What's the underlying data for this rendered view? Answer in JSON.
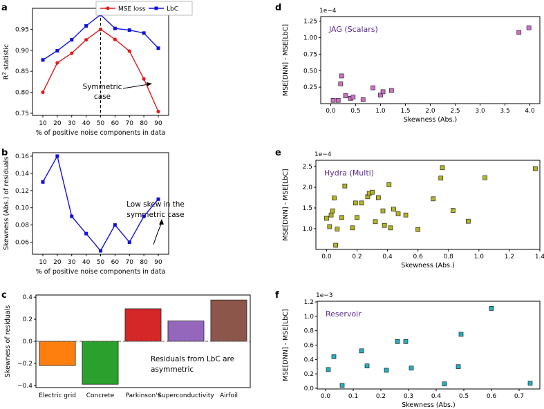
{
  "chart_data": [
    {
      "panel": "a",
      "type": "line",
      "categories": [
        "10",
        "20",
        "30",
        "40",
        "50",
        "60",
        "70",
        "80",
        "90"
      ],
      "series": [
        {
          "name": "MSE loss",
          "color": "#e41a1c",
          "marker": "circle",
          "values": [
            0.8,
            0.87,
            0.893,
            0.925,
            0.95,
            0.926,
            0.898,
            0.832,
            0.754
          ]
        },
        {
          "name": "LbC",
          "color": "#1010e0",
          "marker": "square",
          "values": [
            0.877,
            0.899,
            0.925,
            0.958,
            0.985,
            0.952,
            0.948,
            0.941,
            0.905
          ]
        }
      ],
      "xlabel": "% of positive noise components in data",
      "ylabel": "R² statistic",
      "yticks": [
        "0.75",
        "0.80",
        "0.85",
        "0.90",
        "0.95"
      ],
      "ylim": [
        0.745,
        1.0
      ],
      "vline_at": "50",
      "annotation": [
        "Symmetric",
        "case"
      ]
    },
    {
      "panel": "b",
      "type": "line",
      "categories": [
        "10",
        "20",
        "30",
        "40",
        "50",
        "60",
        "70",
        "80",
        "90"
      ],
      "series": [
        {
          "name": "Skewness",
          "color": "#1010e0",
          "marker": "square",
          "values": [
            0.13,
            0.16,
            0.09,
            0.07,
            0.05,
            0.08,
            0.06,
            0.09,
            0.11
          ]
        }
      ],
      "xlabel": "% of positive noise components in data",
      "ylabel": "Skewness (Abs.) of residuals",
      "yticks": [
        "0.06",
        "0.08",
        "0.10",
        "0.12",
        "0.14",
        "0.16"
      ],
      "ylim": [
        0.046,
        0.164
      ],
      "annotation": [
        "Low skew in the",
        "symmetric case"
      ]
    },
    {
      "panel": "c",
      "type": "bar",
      "categories": [
        "Electric grid",
        "Concrete",
        "Parkinson's",
        "Superconductivity",
        "Airfoil"
      ],
      "values": [
        -0.22,
        -0.39,
        0.295,
        0.185,
        0.375
      ],
      "colors": [
        "#ff7f0e",
        "#2ca02c",
        "#d62728",
        "#9467bd",
        "#8c564b"
      ],
      "ylabel": "Skewness of residuals",
      "yticks": [
        "0.4",
        "0.2",
        "0.0",
        "−0.2",
        "−0.4"
      ],
      "ylim": [
        -0.42,
        0.42
      ],
      "annotation": [
        "Residuals from LbC are",
        "asymmetric"
      ]
    },
    {
      "panel": "d",
      "type": "scatter",
      "title": "JAG (Scalars)",
      "color": "#d070c8",
      "exponent": "1e−4",
      "xlabel": "Skewness (Abs.)",
      "ylabel": "MSE[DNN] - MSE[LbC]",
      "xticks": [
        "0.0",
        "0.5",
        "1.0",
        "1.5",
        "2.0",
        "2.5",
        "3.0",
        "3.5",
        "4.0"
      ],
      "yticks": [
        "0.25",
        "0.50",
        "0.75",
        "1.00",
        "1.25"
      ],
      "xlim": [
        -0.2,
        4.2
      ],
      "ylim": [
        0.0,
        1.32
      ],
      "points": [
        [
          0.05,
          0.05
        ],
        [
          0.15,
          0.05
        ],
        [
          0.2,
          0.3
        ],
        [
          0.22,
          0.42
        ],
        [
          0.3,
          0.12
        ],
        [
          0.4,
          0.08
        ],
        [
          0.45,
          0.1
        ],
        [
          0.65,
          0.06
        ],
        [
          0.85,
          0.24
        ],
        [
          1.0,
          0.13
        ],
        [
          1.05,
          0.18
        ],
        [
          1.22,
          0.2
        ],
        [
          3.78,
          1.08
        ],
        [
          3.98,
          1.15
        ]
      ]
    },
    {
      "panel": "e",
      "type": "scatter",
      "title": "Hydra (Multi)",
      "color": "#b5b520",
      "exponent": "1e−4",
      "xlabel": "Skewness (Abs.)",
      "ylabel": "MSE[DNN] - MSE[LbC]",
      "xticks": [
        "0.0",
        "0.2",
        "0.4",
        "0.6",
        "0.8",
        "1.0",
        "1.2",
        "1.4"
      ],
      "yticks": [
        "1.0",
        "1.5",
        "2.0",
        "2.5"
      ],
      "xlim": [
        -0.07,
        1.4
      ],
      "ylim": [
        0.5,
        2.65
      ],
      "points": [
        [
          0.0,
          1.25
        ],
        [
          0.02,
          1.05
        ],
        [
          0.03,
          1.33
        ],
        [
          0.04,
          1.43
        ],
        [
          0.05,
          1.74
        ],
        [
          0.06,
          0.6
        ],
        [
          0.07,
          0.99
        ],
        [
          0.1,
          1.27
        ],
        [
          0.12,
          2.03
        ],
        [
          0.17,
          1.02
        ],
        [
          0.19,
          1.62
        ],
        [
          0.2,
          1.27
        ],
        [
          0.23,
          1.62
        ],
        [
          0.27,
          1.77
        ],
        [
          0.28,
          1.85
        ],
        [
          0.3,
          1.88
        ],
        [
          0.32,
          1.17
        ],
        [
          0.34,
          1.75
        ],
        [
          0.37,
          1.43
        ],
        [
          0.38,
          1.08
        ],
        [
          0.41,
          2.06
        ],
        [
          0.42,
          1.02
        ],
        [
          0.44,
          1.47
        ],
        [
          0.47,
          1.36
        ],
        [
          0.52,
          1.33
        ],
        [
          0.6,
          0.98
        ],
        [
          0.7,
          1.72
        ],
        [
          0.75,
          2.22
        ],
        [
          0.76,
          2.47
        ],
        [
          0.83,
          1.44
        ],
        [
          0.93,
          1.18
        ],
        [
          1.04,
          2.23
        ],
        [
          1.37,
          2.45
        ]
      ]
    },
    {
      "panel": "f",
      "type": "scatter",
      "title": "Reservoir",
      "color": "#24b0c0",
      "exponent": "1e−3",
      "xlabel": "Skewness (Abs.)",
      "ylabel": "MSE[DNN] - MSE[LbC]",
      "xticks": [
        "0.0",
        "0.1",
        "0.2",
        "0.3",
        "0.4",
        "0.5",
        "0.6",
        "0.7"
      ],
      "yticks": [
        "0.0",
        "0.2",
        "0.4",
        "0.6",
        "0.8",
        "1.0",
        "1.2"
      ],
      "xlim": [
        -0.03,
        0.775
      ],
      "ylim": [
        -0.01,
        1.21
      ],
      "points": [
        [
          0.01,
          0.26
        ],
        [
          0.03,
          0.44
        ],
        [
          0.06,
          0.04
        ],
        [
          0.13,
          0.52
        ],
        [
          0.15,
          0.31
        ],
        [
          0.22,
          0.25
        ],
        [
          0.26,
          0.65
        ],
        [
          0.29,
          0.65
        ],
        [
          0.31,
          0.28
        ],
        [
          0.43,
          0.06
        ],
        [
          0.48,
          0.3
        ],
        [
          0.49,
          0.75
        ],
        [
          0.6,
          1.11
        ],
        [
          0.74,
          0.07
        ]
      ]
    }
  ]
}
